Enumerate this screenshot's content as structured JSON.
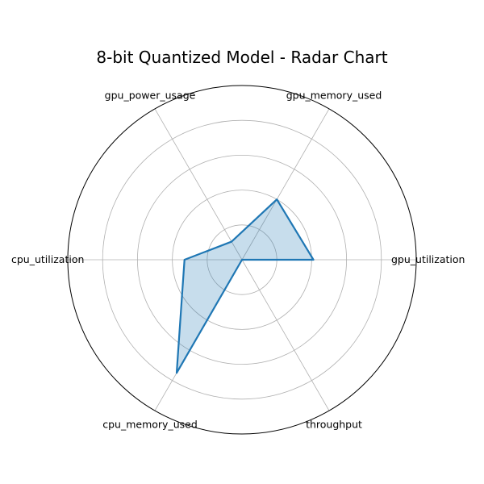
{
  "chart_data": {
    "type": "radar",
    "title": "8-bit Quantized Model  - Radar Chart",
    "categories": [
      "gpu_utilization",
      "gpu_memory_used",
      "gpu_power_usage",
      "cpu_utilization",
      "cpu_memory_used",
      "throughput"
    ],
    "series": [
      {
        "values": [
          0.41,
          0.4,
          0.12,
          0.33,
          0.75,
          0.0
        ],
        "color": "#1f77b4",
        "fill_color": "#1f77b4",
        "fill_opacity": 0.25
      }
    ],
    "rmax": 1.0,
    "grid_levels": [
      0.2,
      0.4,
      0.6,
      0.8
    ],
    "tick_labels_shown": false,
    "start_angle_deg": 0,
    "direction": "counterclockwise",
    "grid": true,
    "legend": "none"
  }
}
